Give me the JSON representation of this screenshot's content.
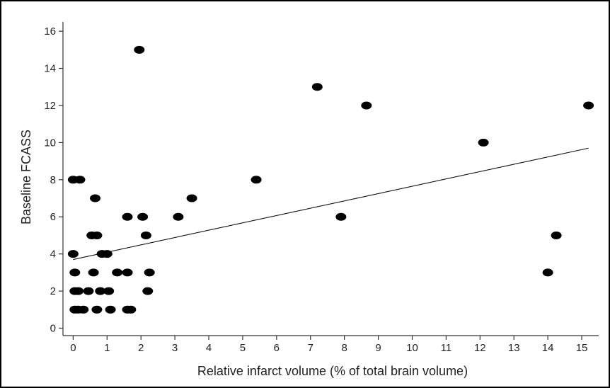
{
  "chart_data": {
    "type": "scatter",
    "title": "",
    "xlabel": "Relative infarct volume (% of total brain volume)",
    "ylabel": "Baseline FCASS",
    "xlim": [
      -0.3,
      15.5
    ],
    "ylim": [
      -0.4,
      16.5
    ],
    "x_ticks": [
      0,
      1,
      2,
      3,
      4,
      5,
      6,
      7,
      8,
      9,
      10,
      11,
      12,
      13,
      14,
      15
    ],
    "y_ticks": [
      0,
      2,
      4,
      6,
      8,
      10,
      12,
      14,
      16
    ],
    "grid": false,
    "legend": "none",
    "marker_color": "#000000",
    "points": [
      {
        "x": 0.0,
        "y": 8
      },
      {
        "x": 0.2,
        "y": 8
      },
      {
        "x": 0.0,
        "y": 4
      },
      {
        "x": 0.05,
        "y": 3
      },
      {
        "x": 0.05,
        "y": 2
      },
      {
        "x": 0.15,
        "y": 2
      },
      {
        "x": 0.45,
        "y": 2
      },
      {
        "x": 0.05,
        "y": 1
      },
      {
        "x": 0.15,
        "y": 1
      },
      {
        "x": 0.3,
        "y": 1
      },
      {
        "x": 0.55,
        "y": 5
      },
      {
        "x": 0.7,
        "y": 5
      },
      {
        "x": 0.65,
        "y": 7
      },
      {
        "x": 0.6,
        "y": 3
      },
      {
        "x": 0.7,
        "y": 1
      },
      {
        "x": 0.85,
        "y": 4
      },
      {
        "x": 1.0,
        "y": 4
      },
      {
        "x": 0.8,
        "y": 2
      },
      {
        "x": 1.05,
        "y": 2
      },
      {
        "x": 1.1,
        "y": 1
      },
      {
        "x": 1.3,
        "y": 3
      },
      {
        "x": 1.6,
        "y": 6
      },
      {
        "x": 1.6,
        "y": 3
      },
      {
        "x": 1.6,
        "y": 1
      },
      {
        "x": 1.7,
        "y": 1
      },
      {
        "x": 1.95,
        "y": 15
      },
      {
        "x": 2.05,
        "y": 6
      },
      {
        "x": 2.15,
        "y": 5
      },
      {
        "x": 2.25,
        "y": 3
      },
      {
        "x": 2.2,
        "y": 2
      },
      {
        "x": 3.1,
        "y": 6
      },
      {
        "x": 3.5,
        "y": 7
      },
      {
        "x": 5.4,
        "y": 8
      },
      {
        "x": 7.2,
        "y": 13
      },
      {
        "x": 7.9,
        "y": 6
      },
      {
        "x": 8.65,
        "y": 12
      },
      {
        "x": 12.1,
        "y": 10
      },
      {
        "x": 14.0,
        "y": 3
      },
      {
        "x": 14.25,
        "y": 5
      },
      {
        "x": 15.2,
        "y": 12
      }
    ],
    "fit_line": {
      "x": [
        0,
        15.2
      ],
      "y": [
        3.7,
        9.7
      ]
    }
  }
}
